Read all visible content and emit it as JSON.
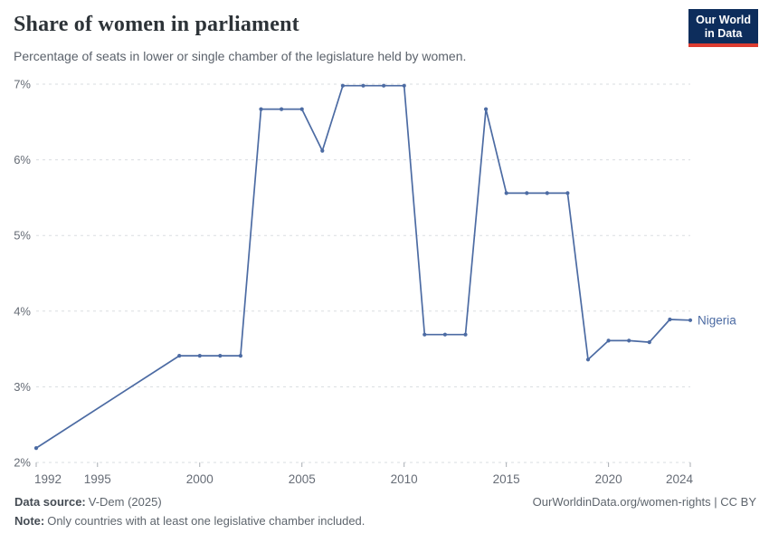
{
  "header": {
    "title": "Share of women in parliament",
    "subtitle": "Percentage of seats in lower or single chamber of the legislature held by women.",
    "logo": {
      "line1": "Our World",
      "line2": "in Data"
    }
  },
  "chart_data": {
    "type": "line",
    "title": "Share of women in parliament",
    "xlabel": "",
    "ylabel": "",
    "xlim": [
      1992,
      2024
    ],
    "ylim": [
      2,
      7
    ],
    "x_ticks": [
      1992,
      1995,
      2000,
      2005,
      2010,
      2015,
      2020,
      2024
    ],
    "y_ticks": [
      2,
      3,
      4,
      5,
      6,
      7
    ],
    "y_tick_suffix": "%",
    "grid": "horizontal-dashed",
    "legend_position": "end-of-line-label",
    "series": [
      {
        "name": "Nigeria",
        "color": "#4c6ba3",
        "points": [
          [
            1992,
            2.19
          ],
          [
            1999,
            3.41
          ],
          [
            2000,
            3.41
          ],
          [
            2001,
            3.41
          ],
          [
            2002,
            3.41
          ],
          [
            2003,
            6.67
          ],
          [
            2004,
            6.67
          ],
          [
            2005,
            6.67
          ],
          [
            2006,
            6.12
          ],
          [
            2007,
            6.98
          ],
          [
            2008,
            6.98
          ],
          [
            2009,
            6.98
          ],
          [
            2010,
            6.98
          ],
          [
            2011,
            3.69
          ],
          [
            2012,
            3.69
          ],
          [
            2013,
            3.69
          ],
          [
            2014,
            6.67
          ],
          [
            2015,
            5.56
          ],
          [
            2016,
            5.56
          ],
          [
            2017,
            5.56
          ],
          [
            2018,
            5.56
          ],
          [
            2019,
            3.36
          ],
          [
            2020,
            3.61
          ],
          [
            2021,
            3.61
          ],
          [
            2022,
            3.59
          ],
          [
            2023,
            3.89
          ],
          [
            2024,
            3.88
          ]
        ]
      }
    ]
  },
  "footer": {
    "source_label": "Data source:",
    "source_value": "V-Dem (2025)",
    "note_label": "Note:",
    "note_value": "Only countries with at least one legislative chamber included.",
    "link": "OurWorldinData.org/women-rights | CC BY"
  },
  "colors": {
    "line": "#4c6ba3",
    "grid": "#dadde1",
    "tick": "#a8adb3",
    "axis_text": "#666c76",
    "title_text": "#2d3338",
    "subtitle_text": "#5b626b",
    "logo_bg": "#0d2d5c",
    "logo_accent": "#dc3c31"
  }
}
